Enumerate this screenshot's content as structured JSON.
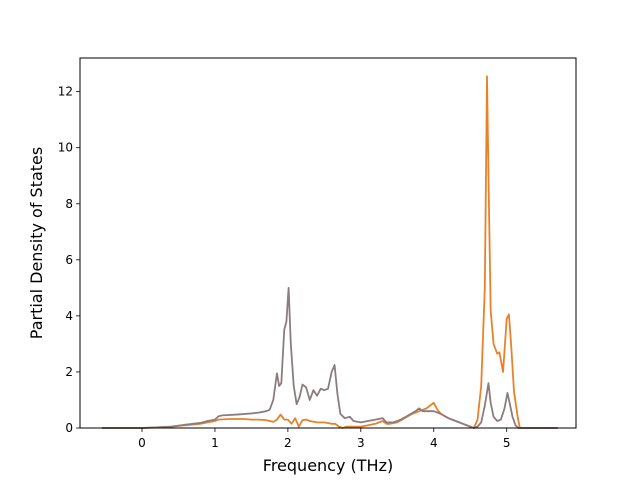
{
  "chart_data": {
    "type": "line",
    "title": "",
    "xlabel": "Frequency (THz)",
    "ylabel": "Partial Density of States",
    "xlim": [
      -0.85,
      5.95
    ],
    "ylim": [
      0,
      13.2
    ],
    "xticks": [
      0,
      1,
      2,
      3,
      4,
      5
    ],
    "yticks": [
      0,
      2,
      4,
      6,
      8,
      10,
      12
    ],
    "grid": false,
    "legend": "none",
    "series": [
      {
        "color": "#e8822a",
        "points": [
          [
            -0.55,
            0
          ],
          [
            0.0,
            0
          ],
          [
            0.2,
            0.02
          ],
          [
            0.4,
            0.05
          ],
          [
            0.6,
            0.1
          ],
          [
            0.8,
            0.15
          ],
          [
            0.9,
            0.2
          ],
          [
            1.0,
            0.25
          ],
          [
            1.05,
            0.3
          ],
          [
            1.2,
            0.32
          ],
          [
            1.4,
            0.32
          ],
          [
            1.5,
            0.3
          ],
          [
            1.6,
            0.3
          ],
          [
            1.7,
            0.28
          ],
          [
            1.8,
            0.22
          ],
          [
            1.85,
            0.3
          ],
          [
            1.9,
            0.48
          ],
          [
            1.95,
            0.3
          ],
          [
            2.0,
            0.3
          ],
          [
            2.05,
            0.15
          ],
          [
            2.1,
            0.35
          ],
          [
            2.15,
            0.05
          ],
          [
            2.2,
            0.28
          ],
          [
            2.25,
            0.3
          ],
          [
            2.3,
            0.25
          ],
          [
            2.4,
            0.2
          ],
          [
            2.5,
            0.2
          ],
          [
            2.6,
            0.15
          ],
          [
            2.65,
            0.15
          ],
          [
            2.7,
            0.05
          ],
          [
            2.75,
            0.0
          ],
          [
            2.8,
            0.05
          ],
          [
            2.9,
            0.05
          ],
          [
            3.0,
            0.05
          ],
          [
            3.1,
            0.1
          ],
          [
            3.2,
            0.15
          ],
          [
            3.3,
            0.25
          ],
          [
            3.35,
            0.15
          ],
          [
            3.4,
            0.15
          ],
          [
            3.5,
            0.2
          ],
          [
            3.6,
            0.35
          ],
          [
            3.7,
            0.5
          ],
          [
            3.8,
            0.6
          ],
          [
            3.9,
            0.7
          ],
          [
            4.0,
            0.9
          ],
          [
            4.05,
            0.65
          ],
          [
            4.1,
            0.5
          ],
          [
            4.2,
            0.35
          ],
          [
            4.3,
            0.25
          ],
          [
            4.4,
            0.15
          ],
          [
            4.5,
            0.05
          ],
          [
            4.55,
            0.0
          ],
          [
            4.6,
            0.3
          ],
          [
            4.65,
            1.5
          ],
          [
            4.7,
            5.0
          ],
          [
            4.73,
            12.55
          ],
          [
            4.75,
            9.0
          ],
          [
            4.78,
            4.2
          ],
          [
            4.82,
            3.0
          ],
          [
            4.87,
            2.65
          ],
          [
            4.9,
            2.7
          ],
          [
            4.95,
            2.0
          ],
          [
            5.0,
            3.9
          ],
          [
            5.03,
            4.05
          ],
          [
            5.06,
            3.0
          ],
          [
            5.1,
            1.3
          ],
          [
            5.15,
            0.4
          ],
          [
            5.18,
            0.0
          ],
          [
            5.2,
            0.0
          ],
          [
            5.7,
            0.0
          ]
        ]
      },
      {
        "color": "#8c7c7e",
        "points": [
          [
            -0.55,
            0
          ],
          [
            0.0,
            0
          ],
          [
            0.2,
            0.02
          ],
          [
            0.4,
            0.05
          ],
          [
            0.6,
            0.12
          ],
          [
            0.8,
            0.18
          ],
          [
            0.9,
            0.25
          ],
          [
            1.0,
            0.3
          ],
          [
            1.05,
            0.42
          ],
          [
            1.1,
            0.45
          ],
          [
            1.3,
            0.48
          ],
          [
            1.5,
            0.52
          ],
          [
            1.6,
            0.55
          ],
          [
            1.7,
            0.6
          ],
          [
            1.75,
            0.65
          ],
          [
            1.8,
            1.0
          ],
          [
            1.85,
            1.95
          ],
          [
            1.88,
            1.5
          ],
          [
            1.91,
            1.6
          ],
          [
            1.95,
            3.5
          ],
          [
            1.98,
            3.8
          ],
          [
            2.01,
            5.0
          ],
          [
            2.04,
            3.0
          ],
          [
            2.08,
            1.5
          ],
          [
            2.12,
            0.85
          ],
          [
            2.16,
            1.1
          ],
          [
            2.2,
            1.55
          ],
          [
            2.25,
            1.45
          ],
          [
            2.3,
            1.0
          ],
          [
            2.35,
            1.35
          ],
          [
            2.4,
            1.15
          ],
          [
            2.45,
            1.4
          ],
          [
            2.5,
            1.35
          ],
          [
            2.55,
            1.4
          ],
          [
            2.6,
            2.0
          ],
          [
            2.64,
            2.25
          ],
          [
            2.68,
            1.2
          ],
          [
            2.72,
            0.5
          ],
          [
            2.78,
            0.35
          ],
          [
            2.85,
            0.4
          ],
          [
            2.9,
            0.25
          ],
          [
            3.0,
            0.2
          ],
          [
            3.1,
            0.25
          ],
          [
            3.2,
            0.3
          ],
          [
            3.3,
            0.35
          ],
          [
            3.35,
            0.2
          ],
          [
            3.45,
            0.2
          ],
          [
            3.55,
            0.3
          ],
          [
            3.65,
            0.45
          ],
          [
            3.75,
            0.6
          ],
          [
            3.8,
            0.7
          ],
          [
            3.85,
            0.6
          ],
          [
            4.0,
            0.6
          ],
          [
            4.1,
            0.5
          ],
          [
            4.2,
            0.35
          ],
          [
            4.3,
            0.25
          ],
          [
            4.4,
            0.15
          ],
          [
            4.5,
            0.05
          ],
          [
            4.55,
            0.0
          ],
          [
            4.6,
            0.05
          ],
          [
            4.65,
            0.2
          ],
          [
            4.7,
            0.8
          ],
          [
            4.75,
            1.6
          ],
          [
            4.78,
            0.9
          ],
          [
            4.82,
            0.4
          ],
          [
            4.87,
            0.25
          ],
          [
            4.92,
            0.3
          ],
          [
            4.97,
            0.7
          ],
          [
            5.01,
            1.25
          ],
          [
            5.04,
            0.9
          ],
          [
            5.08,
            0.4
          ],
          [
            5.12,
            0.1
          ],
          [
            5.16,
            0.0
          ],
          [
            5.2,
            0.0
          ],
          [
            5.7,
            0.0
          ]
        ]
      }
    ]
  }
}
